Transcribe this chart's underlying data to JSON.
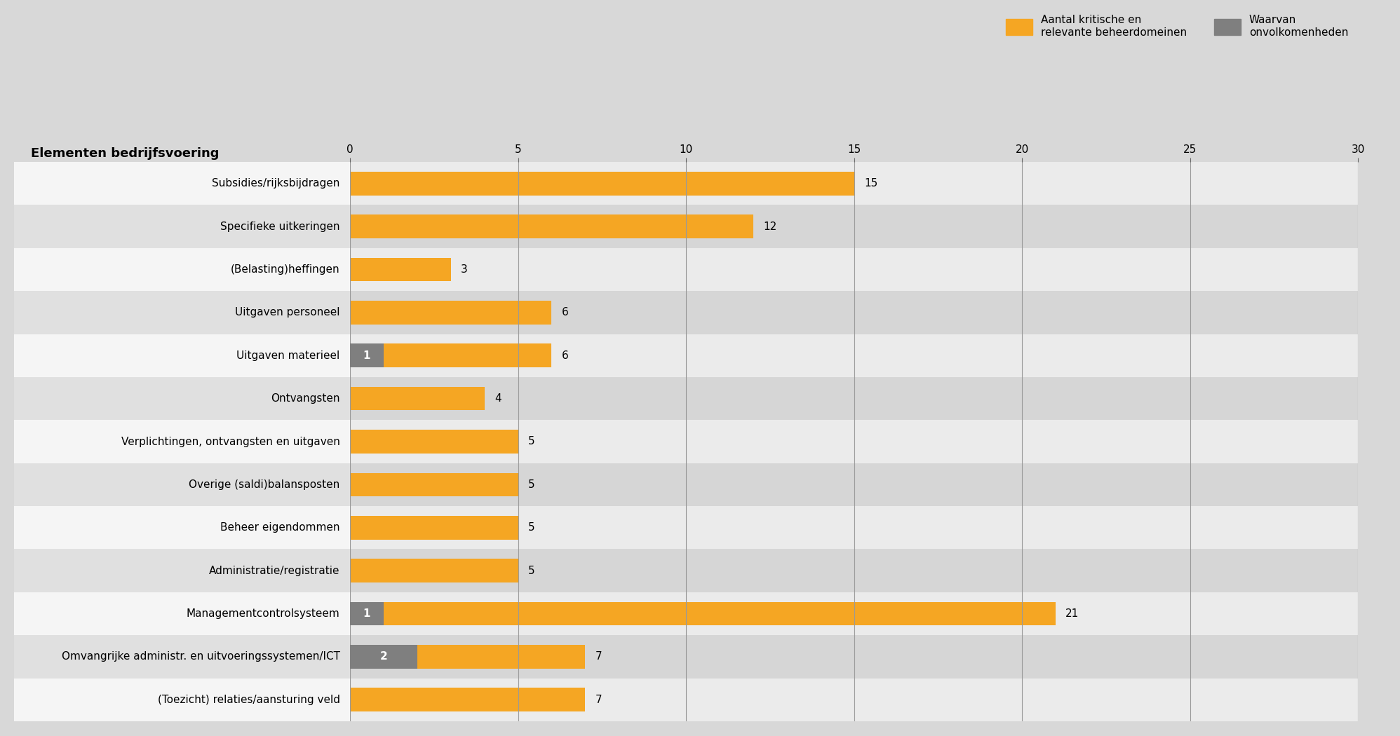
{
  "categories": [
    "Subsidies/rijksbijdragen",
    "Specifieke uitkeringen",
    "(Belasting)heffingen",
    "Uitgaven personeel",
    "Uitgaven materieel",
    "Ontvangsten",
    "Verplichtingen, ontvangsten en uitgaven",
    "Overige (saldi)balansposten",
    "Beheer eigendommen",
    "Administratie/registratie",
    "Managementcontrolsysteem",
    "Omvangrijke administr. en uitvoeringssystemen/ICT",
    "(Toezicht) relaties/aansturing veld"
  ],
  "orange_values": [
    15,
    12,
    3,
    6,
    6,
    4,
    5,
    5,
    5,
    5,
    21,
    7,
    7
  ],
  "gray_values": [
    0,
    0,
    0,
    0,
    1,
    0,
    0,
    0,
    0,
    0,
    1,
    2,
    0
  ],
  "orange_labels": [
    "15",
    "12",
    "3",
    "6",
    "6",
    "4",
    "5",
    "5",
    "5",
    "5",
    "21",
    "7",
    "7"
  ],
  "gray_labels": [
    "",
    "",
    "",
    "",
    "1",
    "",
    "",
    "",
    "",
    "",
    "1",
    "2",
    ""
  ],
  "orange_color": "#F5A623",
  "gray_color": "#7F7F7F",
  "row_colors_light": [
    "#EBEBEB",
    "#D6D6D6"
  ],
  "row_colors_left": [
    "#F5F5F5",
    "#E0E0E0"
  ],
  "header_text": "Elementen bedrijfsvoering",
  "legend_label_orange": "Aantal kritische en\nrelevante beheerdomeinen",
  "legend_label_gray": "Waarvan\nonvolkomenheden",
  "xlim": [
    0,
    30
  ],
  "xticks": [
    0,
    5,
    10,
    15,
    20,
    25,
    30
  ],
  "bar_height": 0.55,
  "figure_bg": "#D8D8D8",
  "grid_color": "#999999",
  "label_fontsize": 11,
  "header_fontsize": 13,
  "tick_fontsize": 11,
  "value_fontsize": 11
}
